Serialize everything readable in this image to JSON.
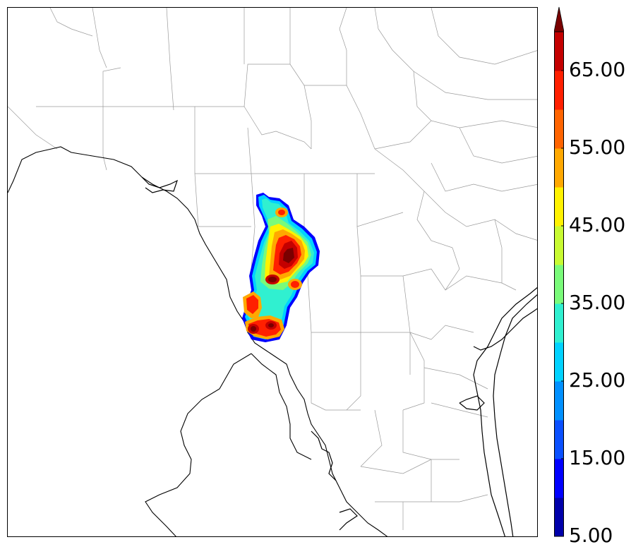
{
  "colorbar": {
    "levels": [
      5,
      10,
      15,
      20,
      25,
      30,
      35,
      40,
      45,
      50,
      55,
      60,
      65,
      70
    ],
    "colors": [
      "#0000aa",
      "#0000ff",
      "#0a50ff",
      "#0090ff",
      "#00d2ff",
      "#30f0d0",
      "#7afb7a",
      "#c8fa32",
      "#fff200",
      "#ffa800",
      "#ff6400",
      "#ff2000",
      "#c40000",
      "#7a0000"
    ],
    "tick_labels": [
      "5.00",
      "15.00",
      "25.00",
      "35.00",
      "45.00",
      "55.00",
      "65.00"
    ],
    "extend": "max"
  },
  "map": {
    "colors": {
      "state_border": "#000000",
      "county_border": "#9a9a9a",
      "coast": "#000000"
    }
  }
}
